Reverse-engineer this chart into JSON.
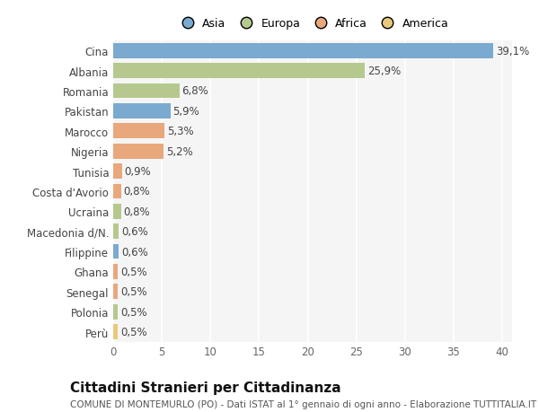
{
  "categories": [
    "Cina",
    "Albania",
    "Romania",
    "Pakistan",
    "Marocco",
    "Nigeria",
    "Tunisia",
    "Costa d'Avorio",
    "Ucraina",
    "Macedonia d/N.",
    "Filippine",
    "Ghana",
    "Senegal",
    "Polonia",
    "Perù"
  ],
  "values": [
    39.1,
    25.9,
    6.8,
    5.9,
    5.3,
    5.2,
    0.9,
    0.8,
    0.8,
    0.6,
    0.6,
    0.5,
    0.5,
    0.5,
    0.5
  ],
  "labels": [
    "39,1%",
    "25,9%",
    "6,8%",
    "5,9%",
    "5,3%",
    "5,2%",
    "0,9%",
    "0,8%",
    "0,8%",
    "0,6%",
    "0,6%",
    "0,5%",
    "0,5%",
    "0,5%",
    "0,5%"
  ],
  "colors": [
    "#7aaacf",
    "#b5c98e",
    "#b5c98e",
    "#7aaacf",
    "#e8a87c",
    "#e8a87c",
    "#e8a87c",
    "#e8a87c",
    "#b5c98e",
    "#b5c98e",
    "#7aaacf",
    "#e8a87c",
    "#e8a87c",
    "#b5c98e",
    "#e8c97c"
  ],
  "legend_labels": [
    "Asia",
    "Europa",
    "Africa",
    "America"
  ],
  "legend_colors": [
    "#7aaacf",
    "#b5c98e",
    "#e8a87c",
    "#e8c97c"
  ],
  "title": "Cittadini Stranieri per Cittadinanza",
  "subtitle": "COMUNE DI MONTEMURLO (PO) - Dati ISTAT al 1° gennaio di ogni anno - Elaborazione TUTTITALIA.IT",
  "xlim": [
    0,
    41
  ],
  "xticks": [
    0,
    5,
    10,
    15,
    20,
    25,
    30,
    35,
    40
  ],
  "bg_color": "#ffffff",
  "plot_bg_color": "#f5f5f5",
  "grid_color": "#ffffff",
  "bar_height": 0.75,
  "label_fontsize": 8.5,
  "tick_fontsize": 8.5,
  "title_fontsize": 11,
  "subtitle_fontsize": 7.5
}
